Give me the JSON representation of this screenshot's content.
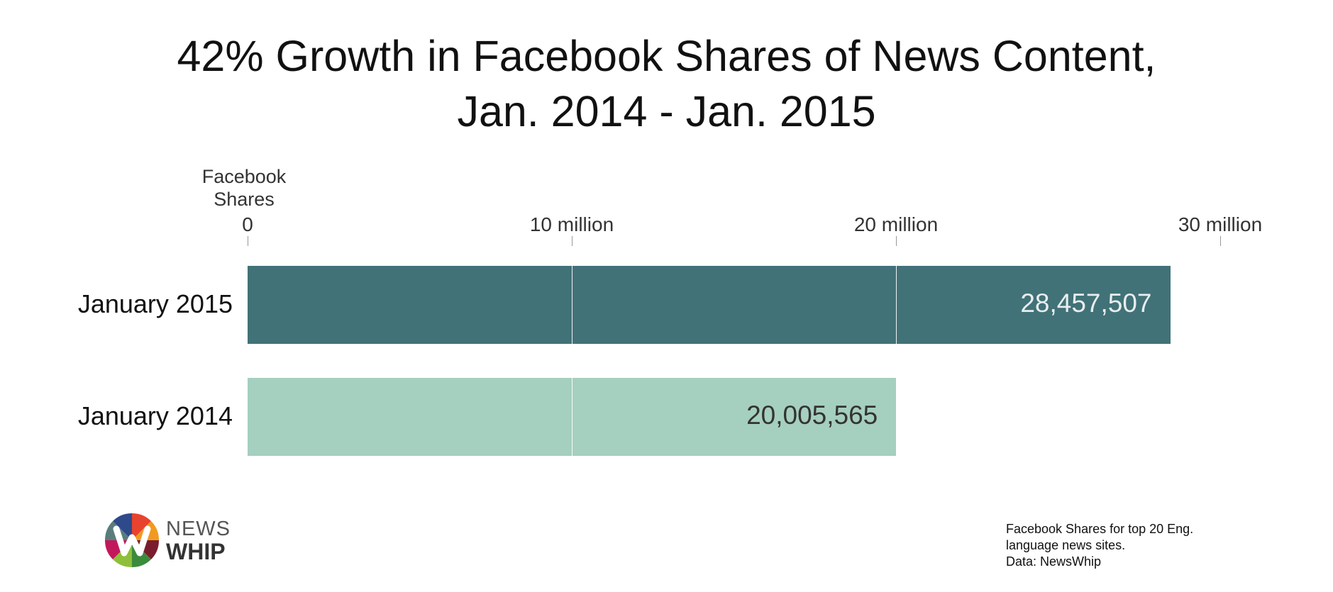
{
  "title_lines": [
    "42% Growth in Facebook Shares of News Content,",
    "Jan. 2014 - Jan. 2015"
  ],
  "colors": {
    "bar_2015": "#417278",
    "bar_2014": "#a5cfbf",
    "value_2015": "#e8eeee",
    "value_2014": "#333333"
  },
  "chart_data": {
    "type": "bar",
    "orientation": "horizontal",
    "title": "42% Growth in Facebook Shares of News Content, Jan. 2014 - Jan. 2015",
    "axis_label": [
      "Facebook",
      "Shares"
    ],
    "xlim": [
      0,
      30000000
    ],
    "ticks": [
      {
        "value": 0,
        "label": "0"
      },
      {
        "value": 10000000,
        "label": "10 million"
      },
      {
        "value": 20000000,
        "label": "20 million"
      },
      {
        "value": 30000000,
        "label": "30 million"
      }
    ],
    "categories": [
      "January 2015",
      "January 2014"
    ],
    "values": [
      28457507,
      20005565
    ],
    "value_labels": [
      "28,457,507",
      "20,005,565"
    ],
    "grid": true
  },
  "logo": {
    "line1": "NEWS",
    "line2": "WHIP"
  },
  "footnote": [
    "Facebook Shares for top 20 Eng.",
    "language news sites.",
    "Data: NewsWhip"
  ]
}
